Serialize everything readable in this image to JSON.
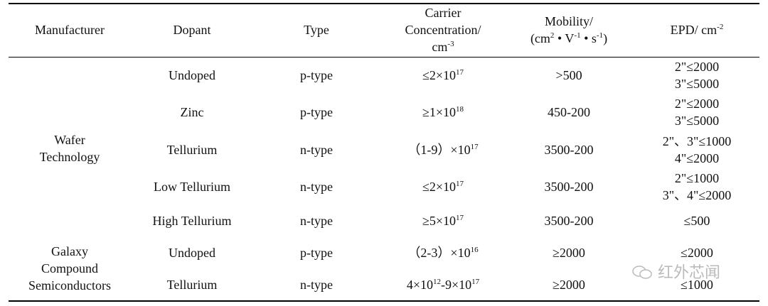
{
  "table": {
    "header": [
      [
        [
          "Manufacturer"
        ]
      ],
      [
        [
          "Dopant"
        ]
      ],
      [
        [
          "Type"
        ]
      ],
      [
        [
          "Carrier"
        ],
        [
          "Concentration/"
        ],
        [
          "cm",
          "-3"
        ]
      ],
      [
        [
          "Mobility/"
        ],
        [
          "(cm",
          "2",
          " • V",
          "-1",
          " • s",
          "-1",
          ")"
        ]
      ],
      [
        [
          "EPD/ cm",
          "-2"
        ]
      ]
    ],
    "groups": [
      {
        "manufacturer": [
          [
            "Wafer"
          ],
          [
            "Technology"
          ]
        ],
        "rows": [
          [
            [
              [
                "Undoped"
              ]
            ],
            [
              [
                "p-type"
              ]
            ],
            [
              [
                "≤2×10",
                "17"
              ]
            ],
            [
              [
                ">500"
              ]
            ],
            [
              [
                "2\"≤2000"
              ],
              [
                "3\"≤5000"
              ]
            ]
          ],
          [
            [
              [
                "Zinc"
              ]
            ],
            [
              [
                "p-type"
              ]
            ],
            [
              [
                "≥1×10",
                "18"
              ]
            ],
            [
              [
                "450-200"
              ]
            ],
            [
              [
                "2\"≤2000"
              ],
              [
                "3\"≤5000"
              ]
            ]
          ],
          [
            [
              [
                "Tellurium"
              ]
            ],
            [
              [
                "n-type"
              ]
            ],
            [
              [
                "（1-9）×10",
                "17"
              ]
            ],
            [
              [
                "3500-200"
              ]
            ],
            [
              [
                "2\"、3\"≤1000"
              ],
              [
                "4\"≤2000"
              ]
            ]
          ],
          [
            [
              [
                "Low Tellurium"
              ]
            ],
            [
              [
                "n-type"
              ]
            ],
            [
              [
                "≤2×10",
                "17"
              ]
            ],
            [
              [
                "3500-200"
              ]
            ],
            [
              [
                "2\"≤1000"
              ],
              [
                "3\"、4\"≤2000"
              ]
            ]
          ],
          [
            [
              [
                "High Tellurium"
              ]
            ],
            [
              [
                "n-type"
              ]
            ],
            [
              [
                "≥5×10",
                "17"
              ]
            ],
            [
              [
                "3500-200"
              ]
            ],
            [
              [
                "≤500"
              ]
            ]
          ]
        ]
      },
      {
        "manufacturer": [
          [
            "Galaxy"
          ],
          [
            "Compound"
          ],
          [
            "Semiconductors"
          ]
        ],
        "rows": [
          [
            [
              [
                "Undoped"
              ]
            ],
            [
              [
                "p-type"
              ]
            ],
            [
              [
                "（2-3）×10",
                "16"
              ]
            ],
            [
              [
                "≥2000"
              ]
            ],
            [
              [
                "≤2000"
              ]
            ]
          ],
          [
            [
              [
                "Tellurium"
              ]
            ],
            [
              [
                "n-type"
              ]
            ],
            [
              [
                "4×10",
                "12",
                "-9×10",
                "17"
              ]
            ],
            [
              [
                "≥2000"
              ]
            ],
            [
              [
                "≤1000"
              ]
            ]
          ]
        ]
      }
    ]
  },
  "watermark": "红外芯闻"
}
